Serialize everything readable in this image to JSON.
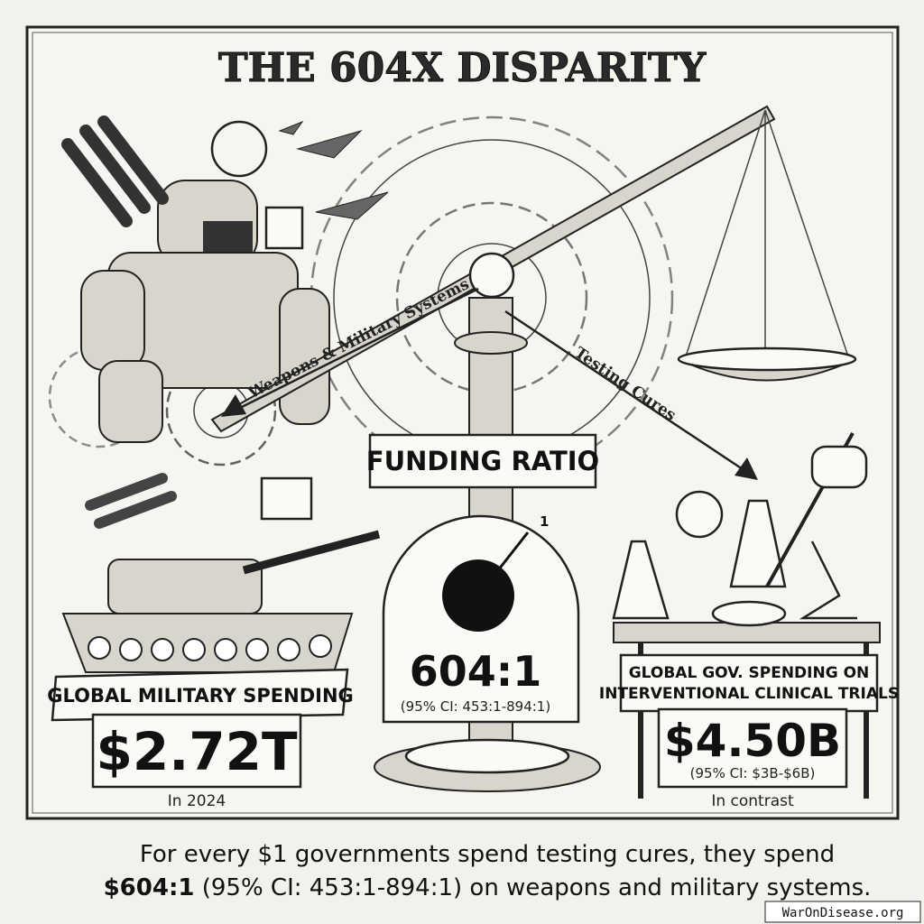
{
  "header": {
    "title": "THE 604X DISPARITY"
  },
  "arrows": {
    "military": "Weapons & Military Systems",
    "cures": "Testing Cures"
  },
  "center": {
    "banner": "FUNDING RATIO",
    "gauge_mark": "1",
    "ratio": "604:1",
    "ci": "(95% CI: 453:1-894:1)"
  },
  "left": {
    "banner": "GLOBAL MILITARY SPENDING",
    "amount": "$2.72T",
    "note": "In 2024"
  },
  "right": {
    "banner_lines": [
      "GLOBAL GOV. SPENDING ON",
      "INTERVENTIONAL CLINICAL TRIALS"
    ],
    "amount": "$4.50B",
    "ci": "(95% CI: $3B-$6B)",
    "note": "In contrast"
  },
  "caption": {
    "line1": "For every $1 governments spend testing cures, they spend",
    "line2_bold": "$604:1",
    "line2_rest": " (95% CI: 453:1-894:1) on weapons and military systems."
  },
  "watermark": "WarOnDisease.org"
}
